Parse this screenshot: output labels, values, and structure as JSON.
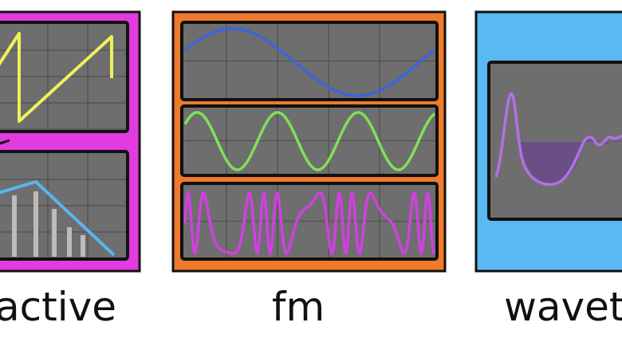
{
  "labels": {
    "left": "active",
    "middle": "fm",
    "right": "wavet"
  }
}
